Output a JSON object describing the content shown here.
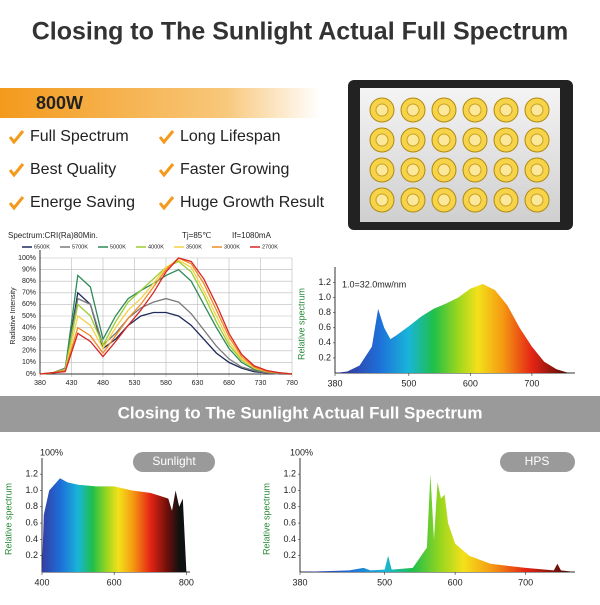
{
  "header": {
    "title": "Closing to The Sunlight Actual Full Spectrum"
  },
  "banner": {
    "power": "800W"
  },
  "features": [
    "Full Spectrum",
    "Long Lifespan",
    "Best Quality",
    "Faster Growing",
    "Energe Saving",
    "Huge Growth Result"
  ],
  "spectrum_chart": {
    "type": "line",
    "title": "Spectrum:CRI(Ra)80Min.",
    "annotations": [
      "Tj=85℃",
      "If=1080mA"
    ],
    "y_label": "Radiative Intensity",
    "grid": true,
    "x": [
      380,
      400,
      420,
      440,
      460,
      480,
      500,
      520,
      540,
      560,
      580,
      600,
      620,
      640,
      660,
      680,
      700,
      720,
      740,
      760,
      780
    ],
    "series": [
      {
        "name": "6500K",
        "color": "#1f2a5a",
        "values": [
          0,
          1,
          5,
          70,
          60,
          22,
          30,
          42,
          50,
          53,
          53,
          50,
          42,
          30,
          18,
          10,
          5,
          2,
          1,
          0,
          0
        ]
      },
      {
        "name": "5700K",
        "color": "#7a7a7a",
        "values": [
          0,
          1,
          5,
          65,
          60,
          25,
          35,
          48,
          57,
          62,
          65,
          62,
          52,
          38,
          24,
          13,
          6,
          3,
          1,
          0,
          0
        ]
      },
      {
        "name": "5000K",
        "color": "#2e8b57",
        "values": [
          0,
          1,
          4,
          85,
          75,
          30,
          50,
          65,
          72,
          78,
          85,
          90,
          80,
          60,
          40,
          22,
          10,
          4,
          2,
          1,
          0
        ]
      },
      {
        "name": "4000K",
        "color": "#9acd32",
        "values": [
          0,
          1,
          4,
          60,
          50,
          25,
          45,
          62,
          72,
          82,
          92,
          97,
          88,
          68,
          45,
          25,
          12,
          5,
          2,
          1,
          0
        ]
      },
      {
        "name": "3500K",
        "color": "#f5d142",
        "values": [
          0,
          1,
          3,
          50,
          42,
          22,
          40,
          55,
          65,
          78,
          92,
          98,
          92,
          72,
          50,
          28,
          13,
          5,
          2,
          1,
          0
        ]
      },
      {
        "name": "3000K",
        "color": "#f08a24",
        "values": [
          0,
          1,
          3,
          40,
          33,
          18,
          33,
          48,
          60,
          75,
          90,
          100,
          95,
          78,
          55,
          32,
          15,
          6,
          2,
          1,
          0
        ]
      },
      {
        "name": "2700K",
        "color": "#d62728",
        "values": [
          0,
          1,
          2,
          35,
          28,
          15,
          28,
          42,
          55,
          70,
          88,
          100,
          97,
          82,
          60,
          35,
          17,
          7,
          3,
          1,
          0
        ]
      }
    ],
    "xlim": [
      380,
      780
    ],
    "xticks": [
      380,
      430,
      480,
      530,
      580,
      630,
      680,
      730,
      780
    ],
    "ylim": [
      0,
      100
    ],
    "yticks": [
      {
        "value": 0,
        "label": "0%"
      },
      {
        "value": 10,
        "label": "10%"
      },
      {
        "value": 20,
        "label": "20%"
      },
      {
        "value": 30,
        "label": "30%"
      },
      {
        "value": 40,
        "label": "40%"
      },
      {
        "value": 50,
        "label": "50%"
      },
      {
        "value": 60,
        "label": "60%"
      },
      {
        "value": 70,
        "label": "70%"
      },
      {
        "value": 80,
        "label": "80%"
      },
      {
        "value": 90,
        "label": "90%"
      },
      {
        "value": 100,
        "label": "100%"
      }
    ]
  },
  "led_chart": {
    "type": "area",
    "annotation": "1.0=32.0mw/nm",
    "y_label": "Relative spectrum",
    "x": [
      380,
      400,
      420,
      440,
      450,
      460,
      470,
      480,
      500,
      520,
      540,
      560,
      580,
      600,
      620,
      640,
      660,
      680,
      700,
      720,
      740,
      760
    ],
    "values": [
      0,
      0.02,
      0.1,
      0.35,
      0.85,
      0.6,
      0.45,
      0.5,
      0.62,
      0.75,
      0.85,
      0.92,
      1.0,
      1.12,
      1.18,
      1.1,
      0.9,
      0.6,
      0.35,
      0.15,
      0.05,
      0
    ],
    "xlim": [
      380,
      770
    ],
    "xticks": [
      380,
      500,
      600,
      700
    ],
    "ylim": [
      0,
      1.3
    ],
    "yticks": [
      0.2,
      0.4,
      0.6,
      0.8,
      {
        "value": 1,
        "label": "1.0"
      },
      1.2
    ]
  },
  "section": {
    "title": "Closing to The Sunlight Actual Full Spectrum"
  },
  "sunlight_chart": {
    "type": "area",
    "tag": "Sunlight",
    "top_label": "100%",
    "y_label": "Relative spectrum",
    "x": [
      400,
      405,
      420,
      450,
      470,
      500,
      550,
      600,
      650,
      700,
      730,
      750,
      760,
      770,
      780,
      790,
      800
    ],
    "values": [
      0,
      0.7,
      1.0,
      1.15,
      1.1,
      1.07,
      1.05,
      1.05,
      1.0,
      0.97,
      0.93,
      0.9,
      0.75,
      1.0,
      0.8,
      0.9,
      0
    ],
    "xlim": [
      400,
      810
    ],
    "xticks": [
      400,
      600,
      800
    ],
    "ylim": [
      0,
      1.3
    ],
    "yticks": [
      0.2,
      0.4,
      0.6,
      0.8,
      {
        "value": 1,
        "label": "1.0"
      },
      1.2
    ]
  },
  "hps_chart": {
    "type": "area",
    "tag": "HPS",
    "top_label": "100%",
    "y_label": "Relative spectrum",
    "x": [
      380,
      450,
      470,
      480,
      500,
      505,
      510,
      540,
      560,
      565,
      570,
      575,
      580,
      585,
      590,
      600,
      620,
      650,
      700,
      740,
      745,
      750,
      770
    ],
    "values": [
      0,
      0.02,
      0.05,
      0.02,
      0.03,
      0.2,
      0.03,
      0.05,
      0.3,
      1.2,
      0.4,
      1.1,
      0.9,
      0.95,
      0.6,
      0.35,
      0.2,
      0.1,
      0.05,
      0.02,
      0.1,
      0.02,
      0
    ],
    "xlim": [
      380,
      770
    ],
    "xticks": [
      380,
      500,
      600,
      700
    ],
    "ylim": [
      0,
      1.3
    ],
    "yticks": [
      0.2,
      0.4,
      0.6,
      0.8,
      {
        "value": 1,
        "label": "1.0"
      },
      1.2
    ]
  }
}
